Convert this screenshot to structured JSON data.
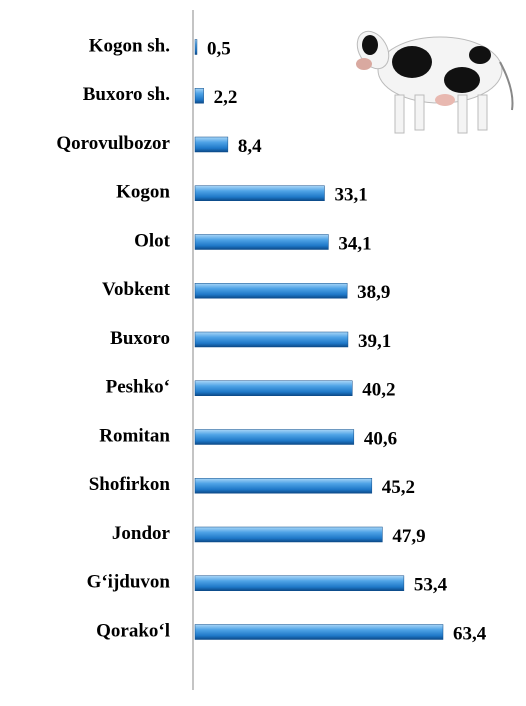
{
  "chart_data": {
    "type": "bar",
    "orientation": "horizontal",
    "categories": [
      "Kogon sh.",
      "Buxoro sh.",
      "Qorovulbozor",
      "Kogon",
      "Olot",
      "Vobkent",
      "Buxoro",
      "Peshko‘",
      "Romitan",
      "Shofirkon",
      "Jondor",
      "G‘ijduvon",
      "Qorako‘l"
    ],
    "values": [
      0.5,
      2.2,
      8.4,
      33.1,
      34.1,
      38.9,
      39.1,
      40.2,
      40.6,
      45.2,
      47.9,
      53.4,
      63.4
    ],
    "value_labels": [
      "0,5",
      "2,2",
      "8,4",
      "33,1",
      "34,1",
      "38,9",
      "39,1",
      "40,2",
      "40,6",
      "45,2",
      "47,9",
      "53,4",
      "63,4"
    ],
    "color": "#1f78c8"
  }
}
